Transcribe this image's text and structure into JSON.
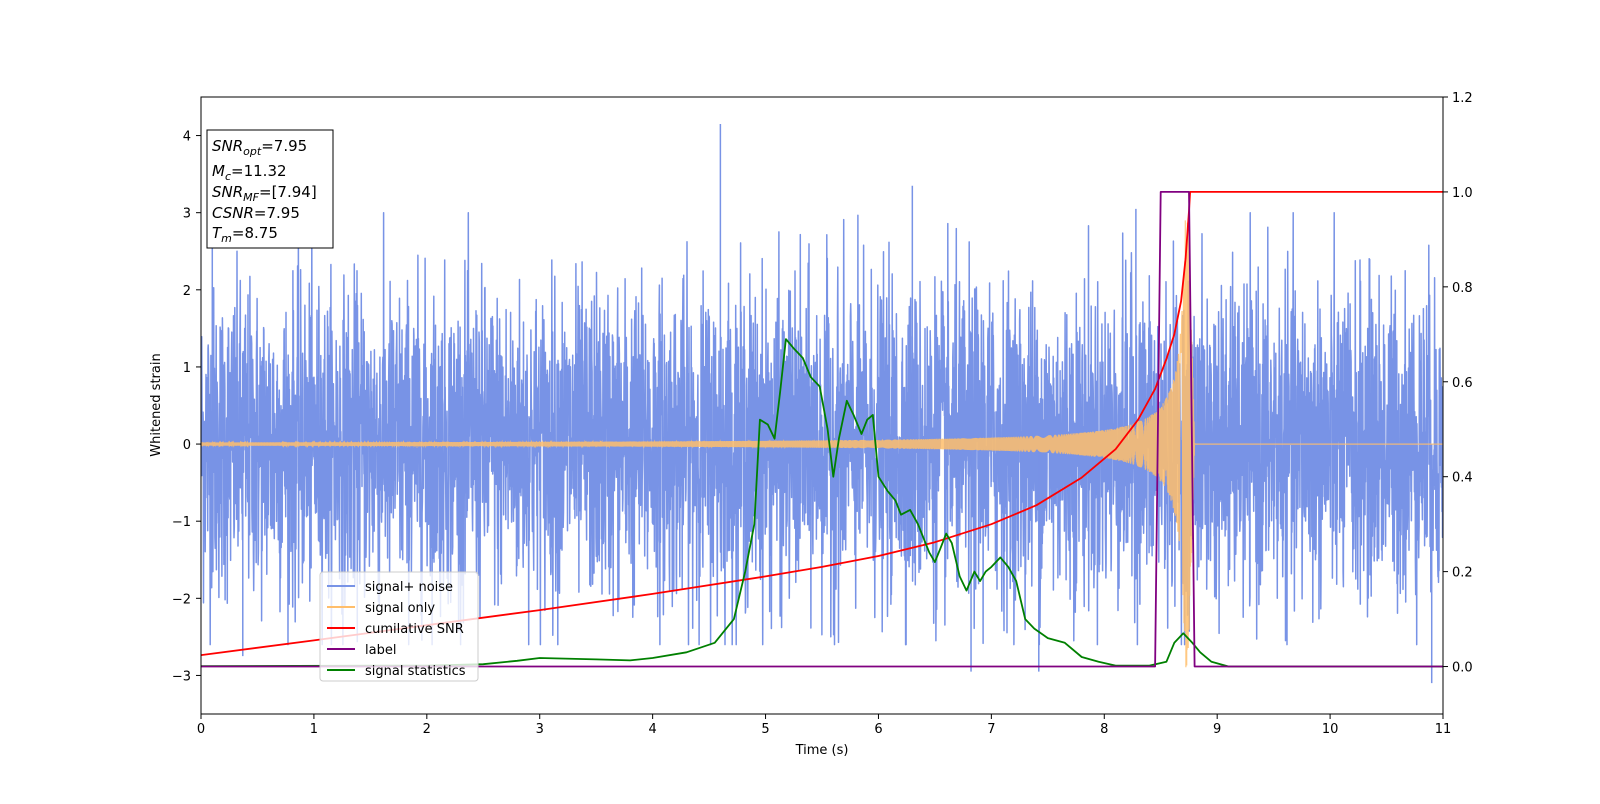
{
  "chart_data": {
    "type": "line",
    "xlabel": "Time (s)",
    "ylabel": "Whitened strain",
    "xlim": [
      0,
      11
    ],
    "ylim_left": [
      -3.5,
      4.5
    ],
    "ylim_right": [
      -0.1,
      1.2
    ],
    "x_ticks": [
      0,
      1,
      2,
      3,
      4,
      5,
      6,
      7,
      8,
      9,
      10,
      11
    ],
    "y_ticks_left": [
      -3,
      -2,
      -1,
      0,
      1,
      2,
      3,
      4
    ],
    "y_ticks_right": [
      0.0,
      0.2,
      0.4,
      0.6,
      0.8,
      1.0,
      1.2
    ],
    "y_ticks_right_labels": [
      "0.0",
      "0.2",
      "0.4",
      "0.6",
      "0.8",
      "1.0",
      "1.2"
    ],
    "grid": false,
    "legend": {
      "location": "lower-left",
      "entries": [
        "signal+ noise",
        "signal only",
        "cumilative SNR",
        "label",
        "signal statistics"
      ]
    },
    "info_box": {
      "location": "top-left",
      "lines": [
        {
          "base": "SNR",
          "sub": "opt",
          "value": "=7.95"
        },
        {
          "base": "M",
          "sub": "c",
          "value": "=11.32"
        },
        {
          "base": "SNR",
          "sub": "MF",
          "value": "=[7.94]"
        },
        {
          "base": "CSNR",
          "sub": "",
          "value": "=7.95"
        },
        {
          "base": "T",
          "sub": "m",
          "value": "=8.75"
        }
      ]
    },
    "series": [
      {
        "name": "signal+ noise",
        "axis": "left",
        "color": "#7893e6",
        "kind": "noise",
        "sigma": 1.0,
        "x_range": [
          0,
          11
        ],
        "spikes": [
          {
            "x": 4.6,
            "y": 4.15
          },
          {
            "x": 6.3,
            "y": 3.35
          },
          {
            "x": 0.37,
            "y": -2.75
          },
          {
            "x": 10.9,
            "y": -3.1
          },
          {
            "x": 6.82,
            "y": -2.95
          },
          {
            "x": 7.42,
            "y": -2.95
          },
          {
            "x": 0.1,
            "y": 2.6
          },
          {
            "x": 8.28,
            "y": 3.05
          }
        ]
      },
      {
        "name": "signal only",
        "axis": "left",
        "color": "#ffbe6b",
        "kind": "chirp",
        "merger_time": 8.75,
        "ringdown_end": 8.8,
        "amplitude_at_merger": 2.9,
        "amplitude_early": 0.02,
        "x_range": [
          0,
          11
        ]
      },
      {
        "name": "cumilative SNR",
        "axis": "right",
        "color": "#ff0000",
        "x": [
          0,
          1,
          2,
          3,
          4,
          5,
          5.5,
          6,
          6.5,
          7,
          7.4,
          7.8,
          8.1,
          8.3,
          8.45,
          8.55,
          8.62,
          8.68,
          8.72,
          8.75,
          8.76,
          9,
          10,
          11
        ],
        "y": [
          0.024,
          0.055,
          0.087,
          0.119,
          0.153,
          0.19,
          0.21,
          0.233,
          0.262,
          0.3,
          0.34,
          0.398,
          0.458,
          0.52,
          0.585,
          0.648,
          0.7,
          0.77,
          0.86,
          0.96,
          1.0,
          1.0,
          1.0,
          1.0
        ]
      },
      {
        "name": "label",
        "axis": "right",
        "color": "#800080",
        "x": [
          0,
          8.45,
          8.5,
          8.75,
          8.8,
          11
        ],
        "y": [
          0,
          0,
          1,
          1,
          0,
          0
        ]
      },
      {
        "name": "signal statistics",
        "axis": "right",
        "color": "#008000",
        "x": [
          0,
          2,
          2.5,
          2.8,
          3.0,
          3.5,
          3.8,
          4.0,
          4.3,
          4.55,
          4.72,
          4.82,
          4.9,
          4.95,
          5.02,
          5.08,
          5.13,
          5.18,
          5.25,
          5.33,
          5.4,
          5.48,
          5.55,
          5.6,
          5.65,
          5.72,
          5.78,
          5.85,
          5.9,
          5.95,
          6.0,
          6.08,
          6.15,
          6.2,
          6.28,
          6.35,
          6.45,
          6.5,
          6.55,
          6.6,
          6.65,
          6.72,
          6.78,
          6.85,
          6.9,
          6.95,
          7.0,
          7.08,
          7.15,
          7.22,
          7.3,
          7.38,
          7.5,
          7.65,
          7.8,
          7.95,
          8.1,
          8.4,
          8.55,
          8.62,
          8.7,
          8.78,
          8.85,
          8.95,
          9.1,
          10,
          11
        ],
        "y": [
          0.001,
          0.002,
          0.005,
          0.012,
          0.018,
          0.015,
          0.013,
          0.018,
          0.03,
          0.05,
          0.1,
          0.2,
          0.3,
          0.52,
          0.51,
          0.48,
          0.58,
          0.69,
          0.67,
          0.65,
          0.61,
          0.59,
          0.5,
          0.4,
          0.48,
          0.56,
          0.53,
          0.49,
          0.52,
          0.53,
          0.4,
          0.37,
          0.35,
          0.32,
          0.33,
          0.3,
          0.24,
          0.22,
          0.25,
          0.28,
          0.26,
          0.19,
          0.16,
          0.2,
          0.18,
          0.2,
          0.21,
          0.23,
          0.21,
          0.18,
          0.1,
          0.08,
          0.06,
          0.05,
          0.02,
          0.01,
          0.002,
          0.002,
          0.01,
          0.05,
          0.07,
          0.05,
          0.03,
          0.01,
          0.0,
          0.0,
          0.0
        ]
      }
    ]
  }
}
